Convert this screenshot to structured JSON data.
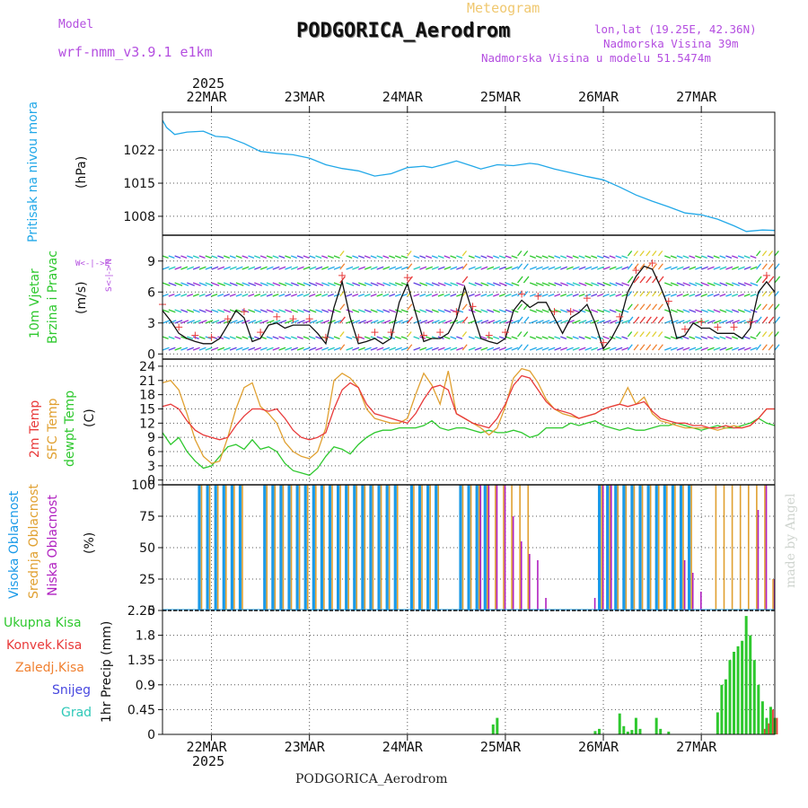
{
  "header": {
    "model_label": "Model",
    "model_name": "wrf-nmm_v3.9.1 e1km",
    "meteogram_label": "Meteogram",
    "station_title": "PODGORICA_Aerodrom",
    "lonlat": "lon,lat (19.25E, 42.36N)",
    "elevation": "Nadmorska Visina 39m",
    "model_elevation": "Nadmorska Visina u modelu 51.5474m",
    "year": "2025",
    "footer_station": "PODGORICA_Aerodrom",
    "watermark": "made by Angel"
  },
  "axes": {
    "dates": [
      "22MAR",
      "23MAR",
      "24MAR",
      "25MAR",
      "26MAR",
      "27MAR"
    ],
    "date_hours": [
      12,
      36,
      60,
      84,
      108,
      132
    ]
  },
  "panels": {
    "pressure": {
      "ylabel_main": "Pritisak na nivou mora",
      "unit": "(hPa)",
      "ticks": [
        "1022",
        "1015",
        "1008"
      ]
    },
    "wind": {
      "ylabel_a": "10m Vjetar",
      "ylabel_b": "Brzina i Pravac",
      "unit": "(m/s)",
      "ticks": [
        "9",
        "6",
        "3",
        "0"
      ],
      "compass_ns": "S<-|->N",
      "compass_we": "W<-|->E"
    },
    "temp": {
      "label_t2m": "2m Temp",
      "label_sfc": "SFC Temp",
      "label_dew": "dewpt Temp",
      "unit": "(C)",
      "ticks": [
        "24",
        "21",
        "18",
        "15",
        "12",
        "9",
        "6",
        "3",
        "0"
      ]
    },
    "cloud": {
      "label_high": "Visoka Oblacnost",
      "label_mid": "Srednja Oblacnost",
      "label_low": "Niska Oblacnost",
      "unit": "(%)",
      "ticks": [
        "100",
        "75",
        "50",
        "25",
        "0"
      ]
    },
    "precip": {
      "legend": [
        "Ukupna Kisa",
        "Konvek.Kisa",
        "Zaledj.Kisa",
        "Snijeg",
        "Grad"
      ],
      "unit": "1hr Precip (mm)",
      "ticks": [
        "2.25",
        "1.8",
        "1.35",
        "0.9",
        "0.45",
        "0"
      ]
    }
  },
  "colors": {
    "pressure": "#22a8e8",
    "t2m": "#e83a3a",
    "sfc": "#e0a030",
    "dew": "#2ec82e",
    "cloud_high": "#1a9ae8",
    "cloud_mid": "#e0a030",
    "cloud_low": "#b020c0",
    "precip_total": "#2ec82e",
    "precip_conv": "#e83a3a",
    "precip_frz": "#f08030",
    "snow": "#4848e0",
    "hail": "#2ec8b8",
    "wind_speed": "#111111",
    "wind_gust": "#e83a3a",
    "purple": "#b44ee0"
  },
  "chart_data": [
    {
      "type": "line",
      "title": "",
      "ylabel": "Pritisak na nivou mora (hPa)",
      "ylim": [
        1004,
        1030
      ],
      "x_hours": [
        0,
        1,
        3,
        6,
        10,
        13,
        16,
        20,
        24,
        28,
        32,
        36,
        40,
        44,
        48,
        52,
        56,
        60,
        64,
        66,
        70,
        72,
        76,
        78,
        82,
        86,
        90,
        92,
        96,
        100,
        104,
        108,
        112,
        116,
        120,
        124,
        128,
        132,
        136,
        140,
        143,
        147,
        150
      ],
      "series": [
        {
          "name": "",
          "values": [
            1028.3,
            1026.8,
            1025.3,
            1025.8,
            1026.0,
            1024.9,
            1024.7,
            1023.4,
            1021.7,
            1021.3,
            1021.0,
            1020.3,
            1018.9,
            1018.1,
            1017.6,
            1016.5,
            1017.0,
            1018.3,
            1018.6,
            1018.3,
            1019.2,
            1019.7,
            1018.6,
            1018.0,
            1018.9,
            1018.7,
            1019.2,
            1019.0,
            1018.0,
            1017.2,
            1016.4,
            1015.7,
            1014.2,
            1012.5,
            1011.2,
            1010.0,
            1008.7,
            1008.3,
            1007.4,
            1006.0,
            1004.8,
            1005.1,
            1005.0
          ]
        }
      ]
    },
    {
      "type": "line",
      "title": "",
      "ylabel": "10m Vjetar Brzina i Pravac (m/s)",
      "ylim": [
        -0.5,
        11.5
      ],
      "x_hours": [
        0,
        2,
        4,
        6,
        8,
        10,
        12,
        14,
        16,
        18,
        20,
        22,
        24,
        26,
        28,
        30,
        32,
        34,
        36,
        38,
        40,
        42,
        44,
        46,
        48,
        50,
        52,
        54,
        56,
        58,
        60,
        62,
        64,
        66,
        68,
        70,
        72,
        74,
        76,
        78,
        80,
        82,
        84,
        86,
        88,
        90,
        92,
        94,
        96,
        98,
        100,
        102,
        104,
        106,
        108,
        110,
        112,
        114,
        116,
        118,
        120,
        122,
        124,
        126,
        128,
        130,
        132,
        134,
        136,
        138,
        140,
        142,
        144,
        146,
        148,
        150
      ],
      "series": [
        {
          "name": "",
          "values": [
            4.2,
            3.2,
            2.0,
            1.5,
            1.2,
            1.0,
            1.0,
            1.5,
            2.8,
            4.2,
            3.5,
            1.2,
            1.5,
            2.8,
            3.0,
            2.5,
            2.8,
            2.8,
            2.8,
            2.0,
            1.0,
            4.5,
            7.0,
            3.5,
            1.0,
            1.2,
            1.5,
            1.0,
            1.5,
            5.0,
            6.8,
            4.0,
            1.2,
            1.5,
            1.5,
            2.0,
            3.5,
            6.5,
            4.0,
            1.5,
            1.2,
            1.0,
            1.5,
            4.2,
            5.2,
            4.5,
            5.0,
            5.0,
            3.5,
            2.0,
            3.5,
            4.0,
            4.8,
            3.0,
            0.5,
            1.5,
            3.0,
            6.0,
            7.5,
            8.5,
            8.2,
            6.5,
            4.5,
            1.5,
            1.8,
            3.0,
            2.5,
            2.5,
            2.0,
            2.0,
            2.0,
            1.5,
            2.5,
            6.0,
            7.0,
            6.0
          ]
        }
      ]
    },
    {
      "type": "line",
      "title": "",
      "ylabel": "(C)",
      "ylim": [
        -1,
        25.5
      ],
      "x_hours": [
        0,
        2,
        4,
        6,
        8,
        10,
        12,
        14,
        16,
        18,
        20,
        22,
        24,
        26,
        28,
        30,
        32,
        34,
        36,
        38,
        40,
        42,
        44,
        46,
        48,
        50,
        52,
        54,
        56,
        58,
        60,
        62,
        64,
        66,
        68,
        70,
        72,
        74,
        76,
        78,
        80,
        82,
        84,
        86,
        88,
        90,
        92,
        94,
        96,
        98,
        100,
        102,
        104,
        106,
        108,
        110,
        112,
        114,
        116,
        118,
        120,
        122,
        124,
        126,
        128,
        130,
        132,
        134,
        136,
        138,
        140,
        142,
        144,
        146,
        148,
        150
      ],
      "series": [
        {
          "name": "2m Temp",
          "values": [
            15.5,
            16.0,
            15.0,
            12.5,
            10.5,
            9.5,
            9.0,
            8.5,
            9.0,
            11.5,
            13.5,
            15.0,
            15.0,
            14.5,
            15.0,
            13.0,
            10.5,
            9.0,
            8.5,
            9.0,
            10.0,
            15.0,
            19.0,
            20.5,
            19.5,
            16.0,
            14.0,
            13.5,
            13.0,
            12.5,
            12.0,
            14.0,
            17.0,
            19.5,
            20.0,
            19.0,
            14.0,
            13.0,
            12.0,
            11.5,
            11.0,
            13.0,
            16.0,
            20.0,
            22.0,
            21.5,
            19.0,
            16.5,
            15.0,
            14.5,
            14.0,
            13.0,
            13.5,
            14.0,
            15.0,
            15.5,
            16.0,
            15.5,
            16.0,
            16.5,
            14.5,
            13.0,
            12.5,
            12.0,
            12.0,
            11.5,
            11.5,
            11.0,
            11.0,
            11.5,
            11.0,
            11.0,
            11.5,
            13.0,
            15.0,
            15.0
          ]
        },
        {
          "name": "SFC Temp",
          "values": [
            20.5,
            21.0,
            19.0,
            14.0,
            8.5,
            5.0,
            3.5,
            4.0,
            9.0,
            15.0,
            19.5,
            20.5,
            15.5,
            14.0,
            12.0,
            8.0,
            6.0,
            5.0,
            4.5,
            6.0,
            11.0,
            21.0,
            22.5,
            21.5,
            19.5,
            15.0,
            13.0,
            12.5,
            12.0,
            12.0,
            13.0,
            18.0,
            22.5,
            20.0,
            16.0,
            23.0,
            14.0,
            13.0,
            12.0,
            11.0,
            9.5,
            11.0,
            15.5,
            21.5,
            23.5,
            23.0,
            20.5,
            17.0,
            15.0,
            14.0,
            13.5,
            13.0,
            13.5,
            14.0,
            15.0,
            15.5,
            16.0,
            19.5,
            16.0,
            17.5,
            14.0,
            12.5,
            12.0,
            11.5,
            11.0,
            11.0,
            11.0,
            11.0,
            10.5,
            11.0,
            11.5,
            11.0,
            11.5,
            13.0,
            15.0,
            15.0
          ]
        },
        {
          "name": "dewpt Temp",
          "values": [
            10.0,
            7.5,
            9.0,
            6.0,
            4.0,
            2.5,
            3.0,
            5.0,
            7.0,
            7.5,
            6.5,
            8.5,
            6.5,
            7.0,
            6.0,
            3.5,
            2.0,
            1.5,
            1.0,
            2.5,
            5.0,
            7.0,
            6.5,
            5.5,
            7.5,
            9.0,
            10.0,
            10.5,
            10.5,
            11.0,
            11.0,
            11.0,
            11.5,
            12.5,
            11.0,
            10.5,
            11.0,
            11.0,
            10.5,
            10.0,
            10.5,
            10.0,
            10.0,
            10.5,
            10.0,
            9.0,
            9.5,
            11.0,
            11.0,
            11.0,
            12.0,
            11.5,
            12.0,
            12.5,
            11.5,
            11.0,
            10.5,
            11.0,
            10.5,
            10.5,
            11.0,
            11.5,
            11.5,
            12.0,
            11.5,
            11.0,
            10.5,
            11.0,
            11.5,
            11.0,
            11.0,
            11.5,
            12.0,
            13.0,
            12.0,
            11.5
          ]
        }
      ]
    },
    {
      "type": "bar",
      "title": "",
      "ylabel": "(%)",
      "ylim": [
        0,
        100
      ],
      "x_hours": [
        9,
        11,
        13,
        15,
        17,
        19,
        21,
        25,
        27,
        29,
        31,
        33,
        35,
        37,
        39,
        41,
        43,
        45,
        47,
        49,
        51,
        53,
        55,
        57,
        61,
        63,
        65,
        67,
        73,
        75,
        77,
        79,
        81,
        83,
        85,
        87,
        89,
        91,
        93,
        95,
        97,
        101,
        103,
        105,
        107,
        109,
        111,
        113,
        115,
        117,
        119,
        121,
        123,
        125,
        127,
        129,
        131,
        133,
        135,
        137,
        139,
        141,
        143,
        145,
        147,
        149
      ],
      "series": [
        {
          "name": "Visoka Oblacnost",
          "values": [
            100,
            100,
            100,
            100,
            100,
            100,
            0,
            100,
            100,
            100,
            100,
            100,
            100,
            100,
            100,
            100,
            100,
            100,
            100,
            100,
            100,
            100,
            100,
            100,
            100,
            100,
            100,
            100,
            100,
            100,
            100,
            100,
            0,
            0,
            0,
            0,
            0,
            0,
            0,
            0,
            0,
            0,
            0,
            0,
            100,
            100,
            100,
            100,
            100,
            100,
            100,
            100,
            100,
            100,
            100,
            100,
            0,
            0,
            0,
            0,
            0,
            0,
            0,
            0,
            0,
            0
          ]
        },
        {
          "name": "Srednja Oblacnost",
          "values": [
            100,
            100,
            100,
            100,
            100,
            100,
            0,
            100,
            100,
            100,
            100,
            100,
            100,
            100,
            100,
            100,
            100,
            100,
            100,
            100,
            100,
            100,
            100,
            100,
            100,
            100,
            100,
            100,
            100,
            100,
            100,
            100,
            100,
            100,
            100,
            100,
            100,
            0,
            0,
            0,
            0,
            0,
            0,
            0,
            100,
            100,
            100,
            100,
            100,
            100,
            100,
            100,
            100,
            100,
            100,
            100,
            0,
            0,
            100,
            100,
            100,
            100,
            100,
            100,
            100,
            25
          ]
        },
        {
          "name": "Niska Oblacnost",
          "values": [
            0,
            0,
            0,
            0,
            0,
            0,
            0,
            0,
            0,
            0,
            0,
            0,
            0,
            0,
            0,
            0,
            0,
            0,
            0,
            0,
            0,
            0,
            0,
            0,
            0,
            0,
            0,
            0,
            0,
            0,
            100,
            100,
            100,
            100,
            75,
            55,
            45,
            40,
            10,
            0,
            0,
            0,
            0,
            10,
            100,
            100,
            0,
            0,
            0,
            0,
            0,
            0,
            0,
            0,
            40,
            30,
            15,
            0,
            0,
            0,
            0,
            0,
            0,
            80,
            100,
            25
          ]
        }
      ]
    },
    {
      "type": "bar",
      "title": "",
      "ylabel": "1hr Precip (mm)",
      "ylim": [
        0,
        2.25
      ],
      "x_hours": [
        81,
        82,
        106,
        107,
        112,
        113,
        114,
        115,
        116,
        117,
        121,
        122,
        124,
        136,
        137,
        138,
        139,
        140,
        141,
        142,
        143,
        144,
        145,
        146,
        147,
        148,
        149,
        150
      ],
      "series": [
        {
          "name": "Ukupna Kisa",
          "values": [
            0.18,
            0.3,
            0.06,
            0.1,
            0.38,
            0.15,
            0.05,
            0.08,
            0.3,
            0.1,
            0.3,
            0.1,
            0.05,
            0.4,
            0.9,
            1.0,
            1.35,
            1.5,
            1.6,
            1.7,
            2.15,
            1.8,
            1.35,
            0.9,
            0.6,
            0.3,
            0.5,
            0.3
          ]
        },
        {
          "name": "Konvek.Kisa",
          "values": [
            0,
            0,
            0,
            0,
            0,
            0,
            0,
            0,
            0,
            0,
            0,
            0,
            0,
            0,
            0,
            0,
            0,
            0,
            0,
            0,
            0,
            0,
            0,
            0,
            0.1,
            0.2,
            0.45,
            0.3
          ]
        }
      ]
    }
  ]
}
